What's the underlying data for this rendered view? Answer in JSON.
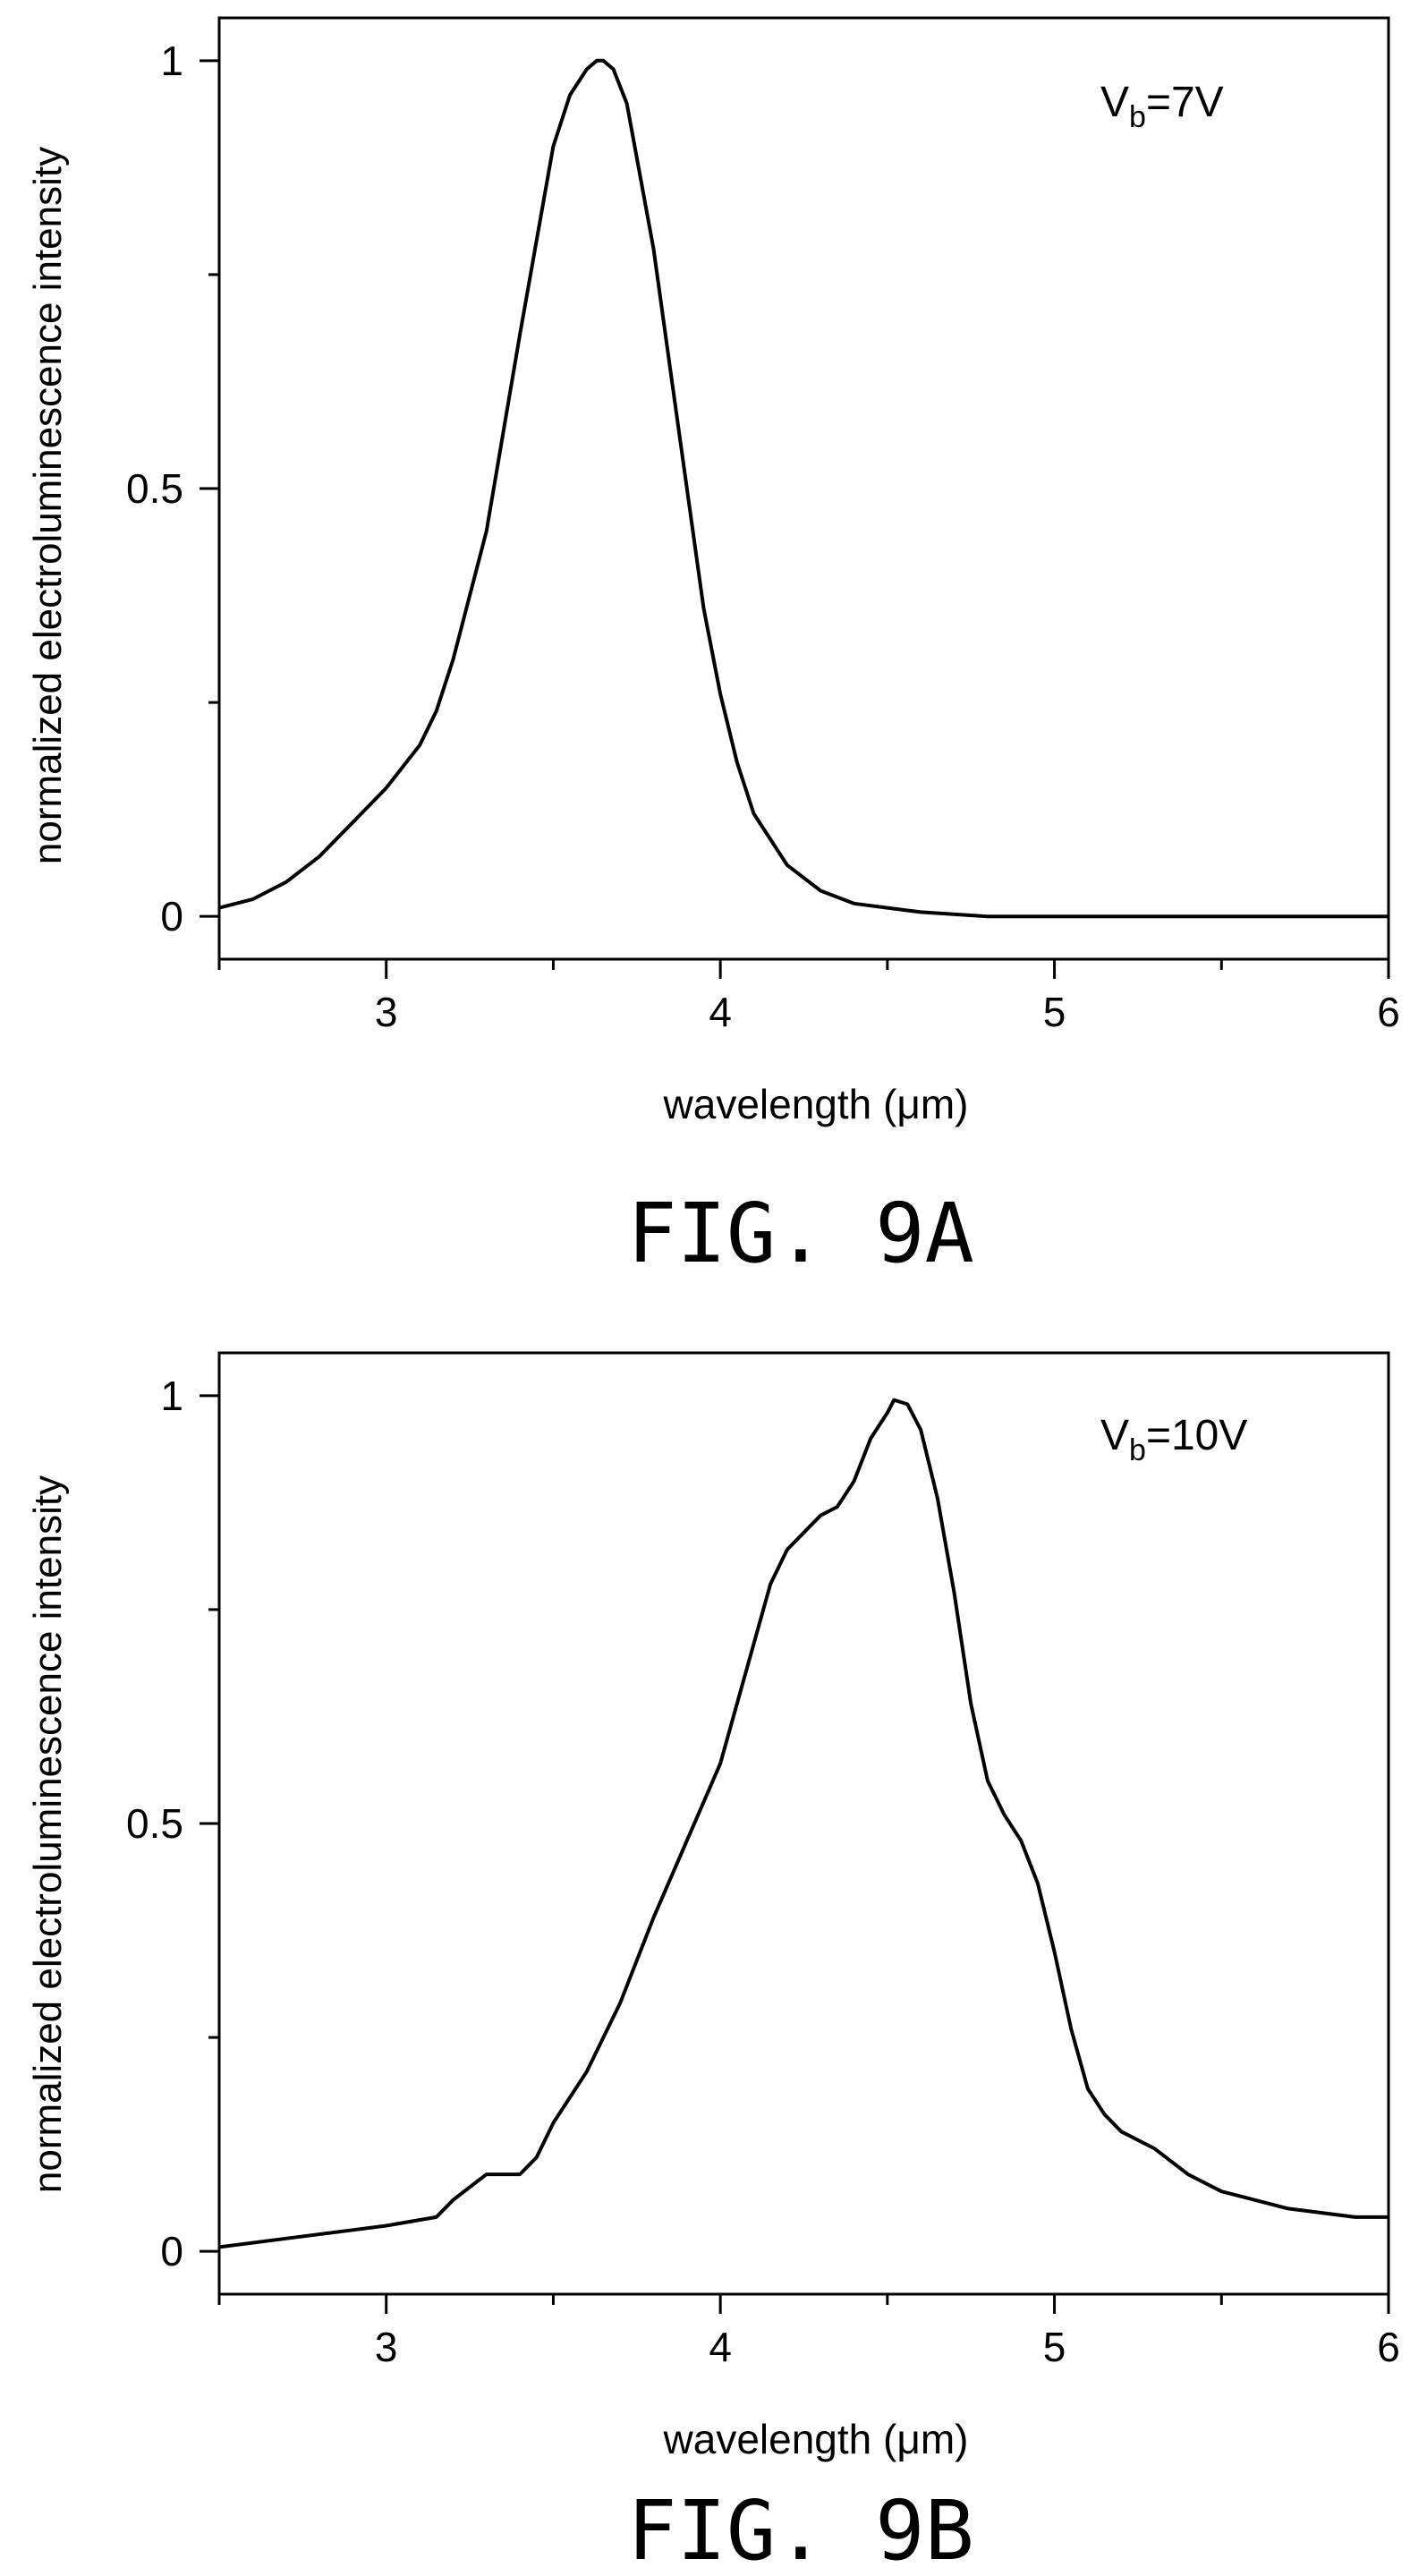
{
  "figures": [
    {
      "caption": "FIG. 9A",
      "annotation": {
        "main": "V",
        "sub": "b",
        "rest": "=7V"
      }
    },
    {
      "caption": "FIG. 9B",
      "annotation": {
        "main": "V",
        "sub": "b",
        "rest": "=10V"
      }
    }
  ],
  "chart_data": [
    {
      "type": "line",
      "xlabel": "wavelength (μm)",
      "ylabel": "normalized electroluminescence intensity",
      "xlim": [
        2.5,
        6
      ],
      "ylim": [
        -0.05,
        1.05
      ],
      "x_ticks": [
        3,
        4,
        5,
        6
      ],
      "y_ticks": [
        0,
        0.5,
        1
      ],
      "x_tick_labels": [
        "3",
        "4",
        "5",
        "6"
      ],
      "y_tick_labels": [
        "0",
        "0.5",
        "1"
      ],
      "x_minor_ticks": [
        2.5,
        3.5,
        4.5,
        5.5
      ],
      "y_minor_ticks": [
        0.25,
        0.75
      ],
      "grid": false,
      "series": [
        {
          "x": [
            2.5,
            2.6,
            2.7,
            2.8,
            2.9,
            3.0,
            3.1,
            3.15,
            3.2,
            3.3,
            3.4,
            3.5,
            3.55,
            3.6,
            3.63,
            3.65,
            3.68,
            3.72,
            3.8,
            3.85,
            3.9,
            3.95,
            4.0,
            4.05,
            4.1,
            4.2,
            4.3,
            4.4,
            4.5,
            4.6,
            4.8,
            5.0,
            5.2,
            5.5,
            5.8,
            6.0
          ],
          "y": [
            0.01,
            0.02,
            0.04,
            0.07,
            0.11,
            0.15,
            0.2,
            0.24,
            0.3,
            0.45,
            0.68,
            0.9,
            0.96,
            0.99,
            1.0,
            1.0,
            0.99,
            0.95,
            0.78,
            0.64,
            0.5,
            0.36,
            0.26,
            0.18,
            0.12,
            0.06,
            0.03,
            0.015,
            0.01,
            0.005,
            0.0,
            0.0,
            0.0,
            0.0,
            0.0,
            0.0
          ]
        }
      ]
    },
    {
      "type": "line",
      "xlabel": "wavelength (μm)",
      "ylabel": "normalized electroluminescence intensity",
      "xlim": [
        2.5,
        6
      ],
      "ylim": [
        -0.05,
        1.05
      ],
      "x_ticks": [
        3,
        4,
        5,
        6
      ],
      "y_ticks": [
        0,
        0.5,
        1
      ],
      "x_tick_labels": [
        "3",
        "4",
        "5",
        "6"
      ],
      "y_tick_labels": [
        "0",
        "0.5",
        "1"
      ],
      "x_minor_ticks": [
        2.5,
        3.5,
        4.5,
        5.5
      ],
      "y_minor_ticks": [
        0.25,
        0.75
      ],
      "grid": false,
      "series": [
        {
          "x": [
            2.5,
            2.7,
            2.9,
            3.0,
            3.15,
            3.2,
            3.3,
            3.35,
            3.4,
            3.45,
            3.5,
            3.6,
            3.7,
            3.8,
            3.9,
            4.0,
            4.05,
            4.1,
            4.15,
            4.2,
            4.25,
            4.3,
            4.35,
            4.4,
            4.45,
            4.5,
            4.52,
            4.56,
            4.6,
            4.65,
            4.7,
            4.75,
            4.8,
            4.85,
            4.9,
            4.95,
            5.0,
            5.05,
            5.1,
            5.15,
            5.2,
            5.3,
            5.4,
            5.5,
            5.6,
            5.7,
            5.8,
            5.9,
            6.0
          ],
          "y": [
            0.005,
            0.015,
            0.025,
            0.03,
            0.04,
            0.06,
            0.09,
            0.09,
            0.09,
            0.11,
            0.15,
            0.21,
            0.29,
            0.39,
            0.48,
            0.57,
            0.64,
            0.71,
            0.78,
            0.82,
            0.84,
            0.86,
            0.87,
            0.9,
            0.95,
            0.98,
            0.995,
            0.99,
            0.96,
            0.88,
            0.77,
            0.64,
            0.55,
            0.51,
            0.48,
            0.43,
            0.35,
            0.26,
            0.19,
            0.16,
            0.14,
            0.12,
            0.09,
            0.07,
            0.06,
            0.05,
            0.045,
            0.04,
            0.04
          ]
        }
      ]
    }
  ]
}
